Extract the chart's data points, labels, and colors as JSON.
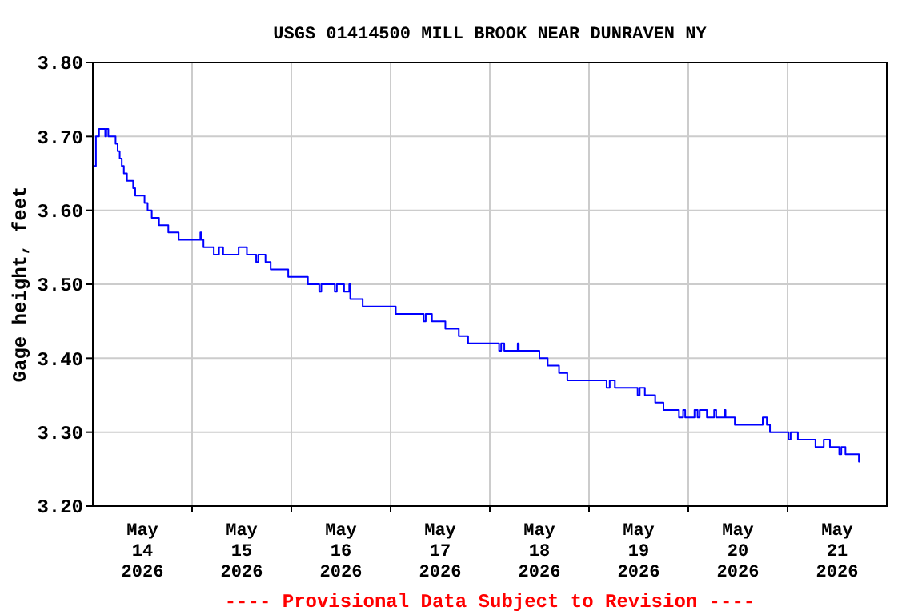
{
  "chart_data": {
    "type": "step",
    "title": "USGS 01414500 MILL BROOK NEAR DUNRAVEN NY",
    "ylabel": "Gage height, feet",
    "annotations": [
      "---- Provisional Data Subject to Revision ----"
    ],
    "grid": true,
    "xlim": [
      "2026-05-14T00:00",
      "2026-05-22T00:00"
    ],
    "ylim": [
      3.2,
      3.8
    ],
    "yticks": [
      {
        "value": 3.2,
        "label": "3.20"
      },
      {
        "value": 3.3,
        "label": "3.30"
      },
      {
        "value": 3.4,
        "label": "3.40"
      },
      {
        "value": 3.5,
        "label": "3.50"
      },
      {
        "value": 3.6,
        "label": "3.60"
      },
      {
        "value": 3.7,
        "label": "3.70"
      },
      {
        "value": 3.8,
        "label": "3.80"
      }
    ],
    "xticks": [
      {
        "value": "2026-05-14T12:00",
        "label": "May\n14\n2026"
      },
      {
        "value": "2026-05-15T00:00",
        "label": null
      },
      {
        "value": "2026-05-15T12:00",
        "label": "May\n15\n2026"
      },
      {
        "value": "2026-05-16T00:00",
        "label": null
      },
      {
        "value": "2026-05-16T12:00",
        "label": "May\n16\n2026"
      },
      {
        "value": "2026-05-17T00:00",
        "label": null
      },
      {
        "value": "2026-05-17T12:00",
        "label": "May\n17\n2026"
      },
      {
        "value": "2026-05-18T00:00",
        "label": null
      },
      {
        "value": "2026-05-18T12:00",
        "label": "May\n18\n2026"
      },
      {
        "value": "2026-05-19T00:00",
        "label": null
      },
      {
        "value": "2026-05-19T12:00",
        "label": "May\n19\n2026"
      },
      {
        "value": "2026-05-20T00:00",
        "label": null
      },
      {
        "value": "2026-05-20T12:00",
        "label": "May\n20\n2026"
      },
      {
        "value": "2026-05-21T00:00",
        "label": null
      },
      {
        "value": "2026-05-21T12:00",
        "label": "May\n21\n2026"
      }
    ],
    "series": [
      {
        "color": "#0000ff",
        "x": [
          "2026-05-14T00:15",
          "2026-05-14T00:45",
          "2026-05-14T01:30",
          "2026-05-14T03:00",
          "2026-05-14T03:15",
          "2026-05-14T03:45",
          "2026-05-14T05:30",
          "2026-05-14T06:00",
          "2026-05-14T06:30",
          "2026-05-14T07:00",
          "2026-05-14T07:30",
          "2026-05-14T08:15",
          "2026-05-14T09:45",
          "2026-05-14T10:15",
          "2026-05-14T12:30",
          "2026-05-14T13:15",
          "2026-05-14T14:15",
          "2026-05-14T16:00",
          "2026-05-14T18:15",
          "2026-05-14T20:45",
          "2026-05-15T02:00",
          "2026-05-15T02:15",
          "2026-05-15T02:45",
          "2026-05-15T05:15",
          "2026-05-15T06:30",
          "2026-05-15T07:30",
          "2026-05-15T11:15",
          "2026-05-15T13:15",
          "2026-05-15T15:30",
          "2026-05-15T16:00",
          "2026-05-15T17:45",
          "2026-05-15T19:00",
          "2026-05-15T23:15",
          "2026-05-16T04:00",
          "2026-05-16T06:45",
          "2026-05-16T07:15",
          "2026-05-16T10:30",
          "2026-05-16T11:00",
          "2026-05-16T12:45",
          "2026-05-16T14:00",
          "2026-05-16T14:15",
          "2026-05-16T17:15",
          "2026-05-17T01:15",
          "2026-05-17T08:00",
          "2026-05-17T08:30",
          "2026-05-17T10:00",
          "2026-05-17T13:15",
          "2026-05-17T16:30",
          "2026-05-17T18:45",
          "2026-05-18T02:15",
          "2026-05-18T02:45",
          "2026-05-18T03:30",
          "2026-05-18T06:45",
          "2026-05-18T07:00",
          "2026-05-18T12:00",
          "2026-05-18T14:00",
          "2026-05-18T16:45",
          "2026-05-18T18:45",
          "2026-05-19T04:15",
          "2026-05-19T05:00",
          "2026-05-19T06:15",
          "2026-05-19T11:45",
          "2026-05-19T12:15",
          "2026-05-19T13:30",
          "2026-05-19T16:00",
          "2026-05-19T18:00",
          "2026-05-19T21:45",
          "2026-05-19T22:45",
          "2026-05-19T23:15",
          "2026-05-20T01:30",
          "2026-05-20T02:15",
          "2026-05-20T02:45",
          "2026-05-20T04:30",
          "2026-05-20T06:15",
          "2026-05-20T06:45",
          "2026-05-20T08:45",
          "2026-05-20T09:00",
          "2026-05-20T11:15",
          "2026-05-20T18:00",
          "2026-05-20T19:00",
          "2026-05-20T19:45",
          "2026-05-21T00:15",
          "2026-05-21T00:45",
          "2026-05-21T02:30",
          "2026-05-21T06:45",
          "2026-05-21T08:45",
          "2026-05-21T10:15",
          "2026-05-21T12:30",
          "2026-05-21T13:00",
          "2026-05-21T14:00",
          "2026-05-21T17:15",
          "2026-05-21T17:30"
        ],
        "values": [
          3.66,
          3.7,
          3.71,
          3.7,
          3.71,
          3.7,
          3.69,
          3.68,
          3.67,
          3.66,
          3.65,
          3.64,
          3.63,
          3.62,
          3.61,
          3.6,
          3.59,
          3.58,
          3.57,
          3.56,
          3.57,
          3.56,
          3.55,
          3.54,
          3.55,
          3.54,
          3.55,
          3.54,
          3.53,
          3.54,
          3.53,
          3.52,
          3.51,
          3.5,
          3.49,
          3.5,
          3.49,
          3.5,
          3.49,
          3.5,
          3.48,
          3.47,
          3.46,
          3.45,
          3.46,
          3.45,
          3.44,
          3.43,
          3.42,
          3.41,
          3.42,
          3.41,
          3.42,
          3.41,
          3.4,
          3.39,
          3.38,
          3.37,
          3.36,
          3.37,
          3.36,
          3.35,
          3.36,
          3.35,
          3.34,
          3.33,
          3.32,
          3.33,
          3.32,
          3.33,
          3.32,
          3.33,
          3.32,
          3.33,
          3.32,
          3.33,
          3.32,
          3.31,
          3.32,
          3.31,
          3.3,
          3.29,
          3.3,
          3.29,
          3.28,
          3.29,
          3.28,
          3.27,
          3.28,
          3.27,
          3.26,
          3.26
        ]
      }
    ]
  }
}
